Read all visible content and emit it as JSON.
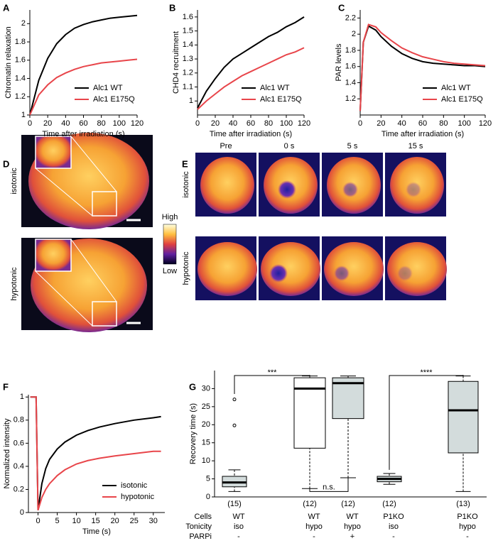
{
  "panels": [
    "A",
    "B",
    "C",
    "D",
    "E",
    "F",
    "G"
  ],
  "chart_data": [
    {
      "type": "line",
      "ylabel": "Chromatin relaxation",
      "xlabel": "Time after irradiation (s)",
      "x": [
        0,
        10,
        20,
        30,
        40,
        50,
        60,
        70,
        80,
        90,
        100,
        110,
        120
      ],
      "xlim": [
        0,
        120
      ],
      "xticks": [
        0,
        20,
        40,
        60,
        80,
        100,
        120
      ],
      "ylim": [
        1,
        2.15
      ],
      "yticks": [
        1,
        1.2,
        1.4,
        1.6,
        1.8,
        2
      ],
      "legend": "lower right",
      "series": [
        {
          "name": "Alc1 WT",
          "color": "#000000",
          "values": [
            1,
            1.38,
            1.62,
            1.78,
            1.88,
            1.95,
            1.99,
            2.02,
            2.04,
            2.06,
            2.07,
            2.08,
            2.09
          ]
        },
        {
          "name": "Alc1 E175Q",
          "color": "#e8454a",
          "values": [
            1,
            1.22,
            1.33,
            1.41,
            1.46,
            1.5,
            1.53,
            1.55,
            1.57,
            1.58,
            1.59,
            1.6,
            1.61
          ]
        }
      ]
    },
    {
      "type": "line",
      "ylabel": "CHD4 recruitment",
      "xlabel": "Time after irradiation (s)",
      "x": [
        0,
        10,
        20,
        30,
        40,
        50,
        60,
        70,
        80,
        90,
        100,
        110,
        120
      ],
      "xlim": [
        0,
        120
      ],
      "xticks": [
        0,
        20,
        40,
        60,
        80,
        100,
        120
      ],
      "ylim": [
        0.9,
        1.65
      ],
      "yticks": [
        1,
        1.1,
        1.2,
        1.3,
        1.4,
        1.5,
        1.6
      ],
      "legend": "lower right",
      "series": [
        {
          "name": "Alc1 WT",
          "color": "#000000",
          "values": [
            0.95,
            1.07,
            1.16,
            1.24,
            1.3,
            1.34,
            1.38,
            1.42,
            1.46,
            1.49,
            1.53,
            1.56,
            1.6
          ]
        },
        {
          "name": "Alc1 E175Q",
          "color": "#e8454a",
          "values": [
            0.94,
            1.0,
            1.05,
            1.1,
            1.14,
            1.18,
            1.21,
            1.24,
            1.27,
            1.3,
            1.33,
            1.35,
            1.38
          ]
        }
      ]
    },
    {
      "type": "line",
      "ylabel": "PAR levels",
      "xlabel": "Time after irradiation (s)",
      "x": [
        0,
        3,
        8,
        15,
        20,
        30,
        40,
        50,
        60,
        70,
        80,
        90,
        100,
        110,
        120
      ],
      "xlim": [
        0,
        120
      ],
      "xticks": [
        0,
        20,
        40,
        60,
        80,
        100,
        120
      ],
      "ylim": [
        1,
        2.3
      ],
      "yticks": [
        1.2,
        1.4,
        1.6,
        1.8,
        2,
        2.2
      ],
      "legend": "lower right",
      "series": [
        {
          "name": "Alc1 WT",
          "color": "#000000",
          "values": [
            1.05,
            1.9,
            2.1,
            2.05,
            1.97,
            1.85,
            1.76,
            1.7,
            1.66,
            1.64,
            1.63,
            1.62,
            1.61,
            1.61,
            1.6
          ]
        },
        {
          "name": "Alc1 E175Q",
          "color": "#e8454a",
          "values": [
            1.05,
            1.9,
            2.12,
            2.09,
            2.02,
            1.92,
            1.83,
            1.77,
            1.72,
            1.69,
            1.66,
            1.64,
            1.63,
            1.62,
            1.61
          ]
        }
      ]
    },
    {
      "type": "line",
      "ylabel": "Normalized intensity",
      "xlabel": "Time (s)",
      "x": [
        -2,
        -0.5,
        0,
        1,
        2,
        3,
        5,
        7,
        10,
        13,
        16,
        20,
        25,
        30,
        32
      ],
      "xlim": [
        -2.5,
        33
      ],
      "xticks": [
        0,
        5,
        10,
        15,
        20,
        25,
        30
      ],
      "ylim": [
        0,
        1.02
      ],
      "yticks": [
        0,
        0.2,
        0.4,
        0.6,
        0.8,
        1
      ],
      "legend": "lower right",
      "series": [
        {
          "name": "isotonic",
          "color": "#000000",
          "values": [
            1,
            1,
            0.02,
            0.25,
            0.38,
            0.46,
            0.55,
            0.61,
            0.67,
            0.71,
            0.74,
            0.77,
            0.8,
            0.82,
            0.83
          ]
        },
        {
          "name": "hypotonic",
          "color": "#e8454a",
          "values": [
            1,
            1,
            0.02,
            0.13,
            0.2,
            0.25,
            0.32,
            0.37,
            0.42,
            0.45,
            0.47,
            0.49,
            0.51,
            0.53,
            0.53
          ]
        }
      ]
    },
    {
      "type": "box",
      "ylabel": "Recovery time (s)",
      "ylim": [
        0,
        35
      ],
      "yticks": [
        0,
        5,
        10,
        15,
        20,
        25,
        30
      ],
      "row_labels": [
        "Cells",
        "Tonicity",
        "PARPi"
      ],
      "categories": [
        [
          "WT",
          "iso",
          "-"
        ],
        [
          "WT",
          "hypo",
          "-"
        ],
        [
          "WT",
          "hypo",
          "+"
        ],
        [
          "P1KO",
          "iso",
          "-"
        ],
        [
          "P1KO",
          "hypo",
          "-"
        ]
      ],
      "counts": [
        "(15)",
        "(12)",
        "(12)",
        "(12)",
        "(13)"
      ],
      "boxes": [
        {
          "whislo": 1.5,
          "q1": 2.8,
          "med": 4,
          "q3": 5.7,
          "whishi": 7.5,
          "fliers": [
            19.8,
            27
          ],
          "color": "#d3dcdc"
        },
        {
          "whislo": 2.3,
          "q1": 13.5,
          "med": 30,
          "q3": 33,
          "whishi": 33.5,
          "fliers": [],
          "color": "#ffffff"
        },
        {
          "whislo": 5.3,
          "q1": 21.7,
          "med": 31.5,
          "q3": 33,
          "whishi": 33.5,
          "fliers": [],
          "color": "#d3dcdc"
        },
        {
          "whislo": 3.5,
          "q1": 4.2,
          "med": 5,
          "q3": 5.7,
          "whishi": 6.5,
          "fliers": [],
          "color": "#d3dcdc"
        },
        {
          "whislo": 1.5,
          "q1": 12.2,
          "med": 24,
          "q3": 32,
          "whishi": 33.5,
          "fliers": [],
          "color": "#d3dcdc"
        }
      ],
      "annotations": [
        "***",
        "n.s.",
        "****"
      ]
    }
  ],
  "image_D": {
    "rows": [
      "isotonic",
      "hypotonic"
    ],
    "colorbar": [
      "High",
      "Low"
    ]
  },
  "image_E": {
    "columns": [
      "Pre",
      "0 s",
      "5 s",
      "15 s"
    ],
    "rows": [
      "isotonic",
      "hypotonic"
    ]
  }
}
